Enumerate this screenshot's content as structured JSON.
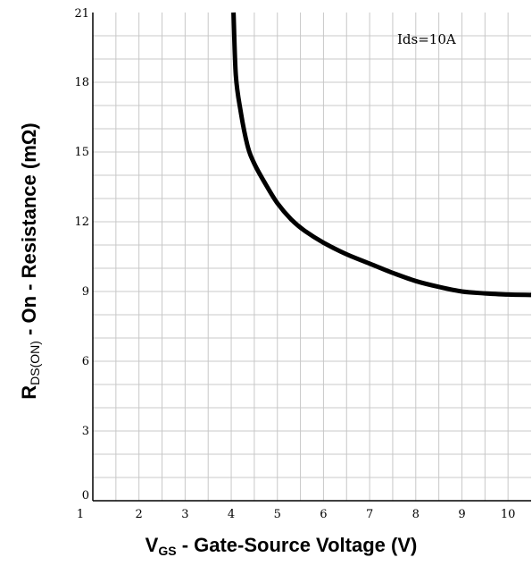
{
  "chart_data": {
    "type": "line",
    "xlabel": {
      "main": "V",
      "sub": "GS",
      "rest": " - Gate-Source Voltage (V)"
    },
    "ylabel": {
      "main": "R",
      "sub": "DS(ON)",
      "rest": " - On - Resistance (mΩ)"
    },
    "annotation": "Ids=10A",
    "xlim": [
      1,
      10.5
    ],
    "ylim": [
      0,
      21
    ],
    "xticks": [
      "1",
      "2",
      "3",
      "4",
      "5",
      "6",
      "7",
      "8",
      "9",
      "10"
    ],
    "yticks": [
      "0",
      "3",
      "6",
      "9",
      "12",
      "15",
      "18",
      "21"
    ],
    "grid": true,
    "series": [
      {
        "x": [
          4.05,
          4.1,
          4.2,
          4.35,
          4.5,
          4.75,
          5.0,
          5.3,
          5.6,
          6.0,
          6.5,
          7.0,
          7.5,
          8.0,
          8.5,
          9.0,
          9.5,
          10.0,
          10.5
        ],
        "y": [
          21.0,
          18.3,
          16.8,
          15.3,
          14.5,
          13.6,
          12.8,
          12.1,
          11.6,
          11.1,
          10.6,
          10.2,
          9.8,
          9.45,
          9.2,
          9.0,
          8.92,
          8.87,
          8.85
        ]
      }
    ]
  }
}
